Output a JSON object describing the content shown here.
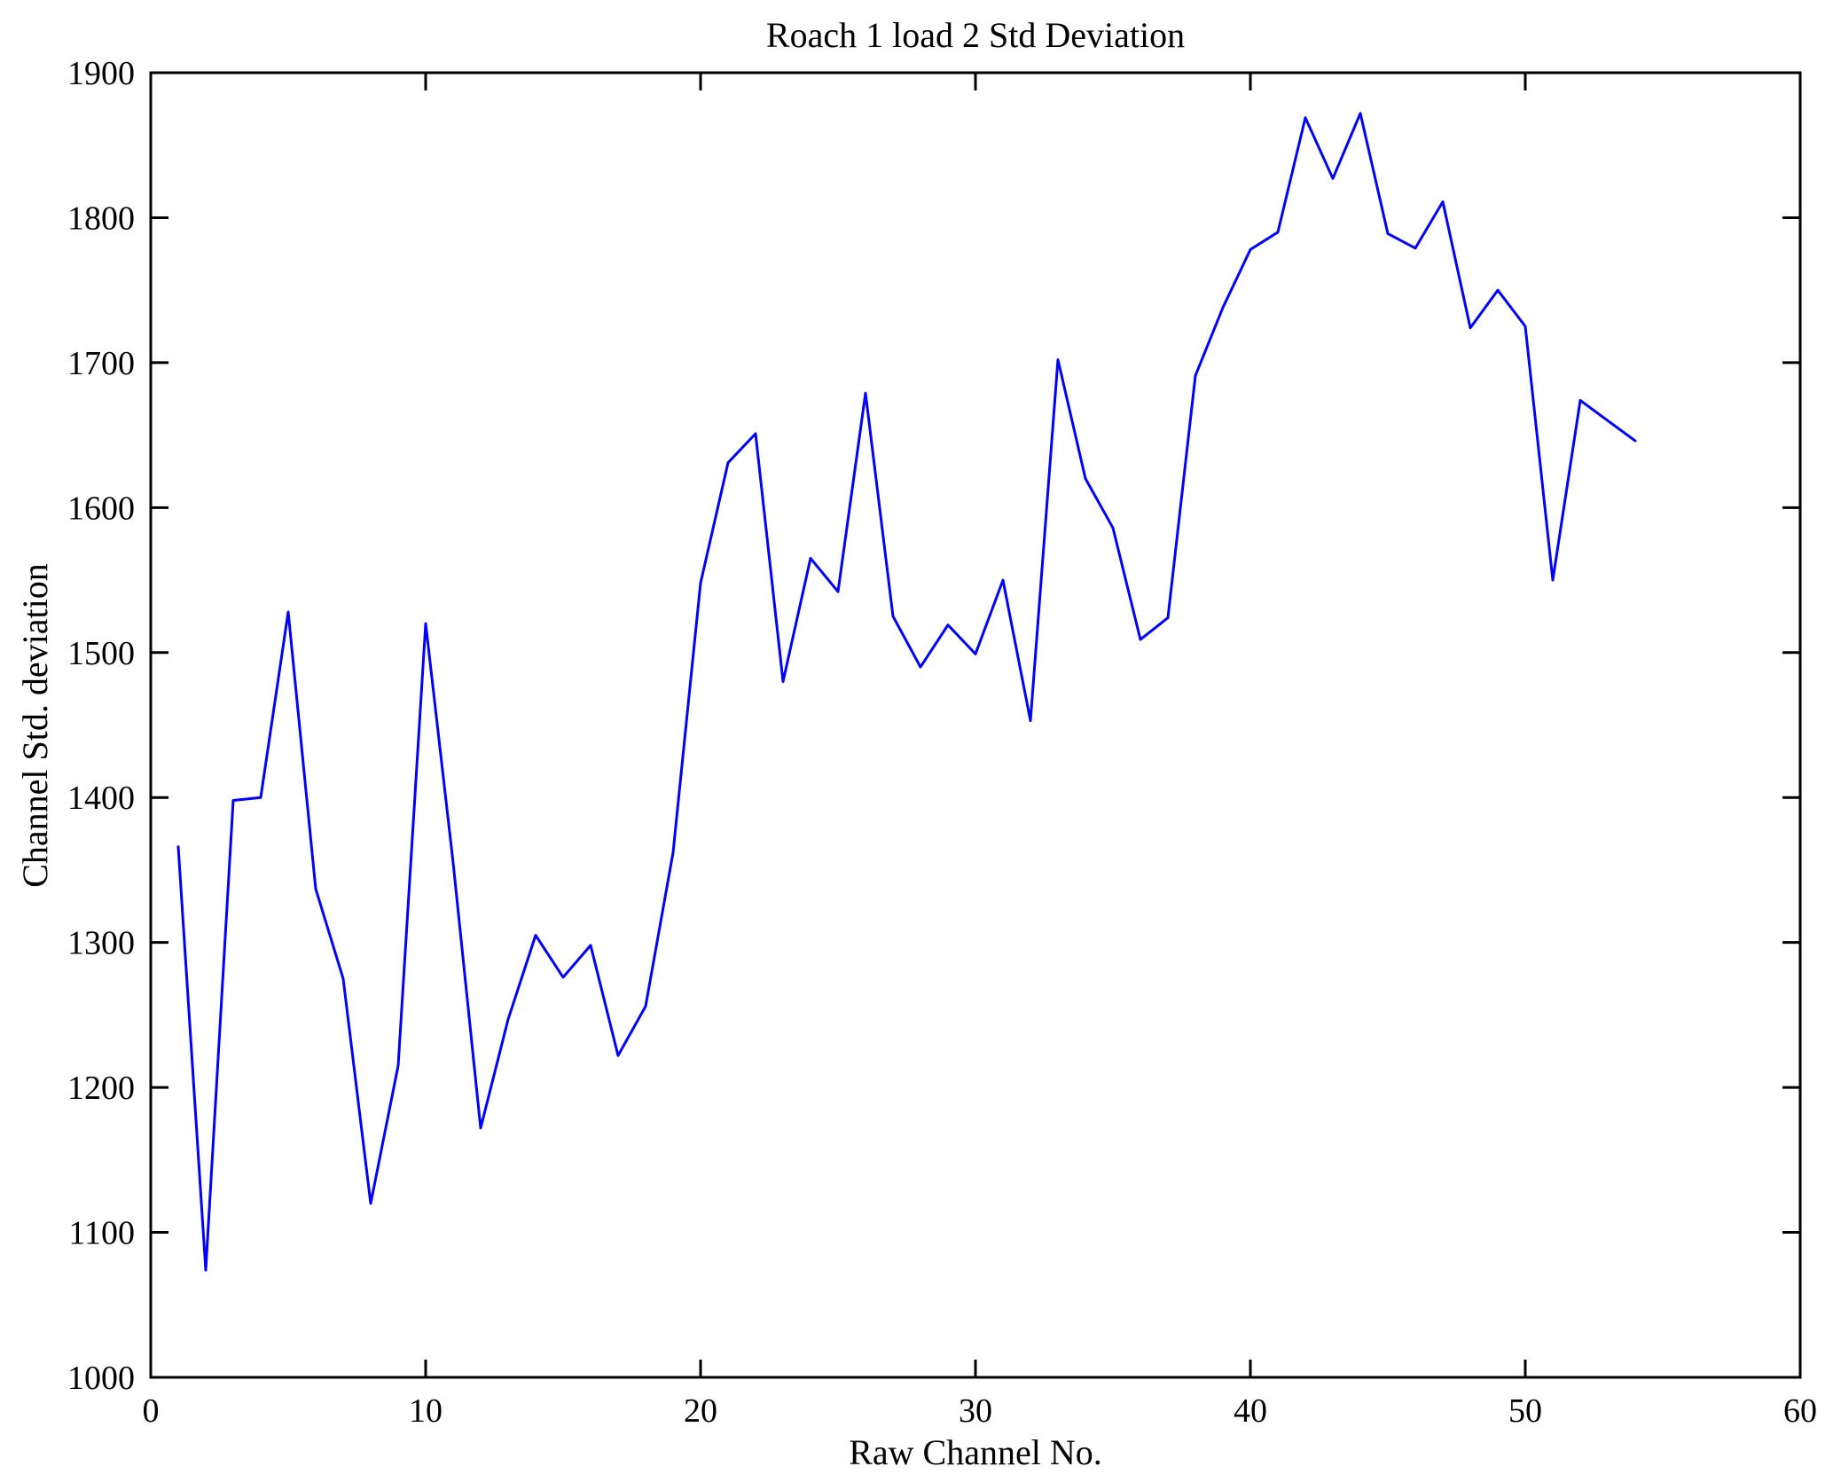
{
  "figure": {
    "background": "#ffffff",
    "axes_color": "#000000"
  },
  "chart_data": {
    "type": "line",
    "title": "Roach 1 load 2 Std Deviation",
    "xlabel": "Raw Channel No.",
    "ylabel": "Channel Std. deviation",
    "xlim": [
      0,
      60
    ],
    "ylim": [
      1000,
      1900
    ],
    "xticks": [
      0,
      10,
      20,
      30,
      40,
      50,
      60
    ],
    "yticks": [
      1000,
      1100,
      1200,
      1300,
      1400,
      1500,
      1600,
      1700,
      1800,
      1900
    ],
    "grid": false,
    "box": true,
    "legend_position": "none",
    "line_color": "#0000ff",
    "line_width": 3,
    "x": [
      1,
      2,
      3,
      4,
      5,
      6,
      7,
      8,
      9,
      10,
      11,
      12,
      13,
      14,
      15,
      16,
      17,
      18,
      19,
      20,
      21,
      22,
      23,
      24,
      25,
      26,
      27,
      28,
      29,
      30,
      31,
      32,
      33,
      34,
      35,
      36,
      37,
      38,
      39,
      40,
      41,
      42,
      43,
      44,
      45,
      46,
      47,
      48,
      49,
      50,
      51,
      52,
      53,
      54
    ],
    "values": [
      1366,
      1074,
      1398,
      1400,
      1528,
      1337,
      1275,
      1120,
      1215,
      1520,
      1355,
      1172,
      1247,
      1305,
      1276,
      1298,
      1222,
      1256,
      1362,
      1548,
      1631,
      1651,
      1480,
      1565,
      1542,
      1679,
      1525,
      1490,
      1519,
      1499,
      1550,
      1453,
      1702,
      1620,
      1586,
      1509,
      1524,
      1691,
      1738,
      1778,
      1790,
      1869,
      1827,
      1872,
      1789,
      1779,
      1811,
      1724,
      1750,
      1725,
      1550,
      1674,
      1660,
      1646
    ]
  }
}
